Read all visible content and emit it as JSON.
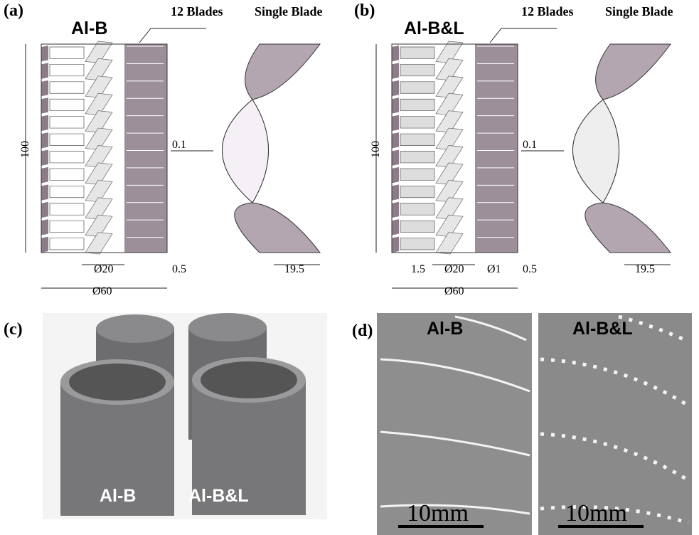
{
  "panel_a": {
    "label": "(a)",
    "title": "Al-B",
    "blades_label": "12 Blades",
    "single_label": "Single Blade",
    "dims": {
      "height": "100",
      "gap": "0.1",
      "inner": "Ø20",
      "wall": "0.5",
      "blade_width": "19.5",
      "outer": "Ø60"
    }
  },
  "panel_b": {
    "label": "(b)",
    "title": "Al-B&L",
    "blades_label": "12 Blades",
    "single_label": "Single Blade",
    "dims": {
      "height": "100",
      "gap": "0.1",
      "spacing": "1.5",
      "inner": "Ø20",
      "hole": "Ø1",
      "wall": "0.5",
      "blade_width": "19.5",
      "outer": "Ø60"
    }
  },
  "panel_c": {
    "label": "(c)",
    "sample_1": "Al-B",
    "sample_2": "Al-B&L"
  },
  "panel_d": {
    "label": "(d)",
    "left_title": "Al-B",
    "right_title": "Al-B&L",
    "left_scale": "10mm",
    "right_scale": "10mm"
  }
}
